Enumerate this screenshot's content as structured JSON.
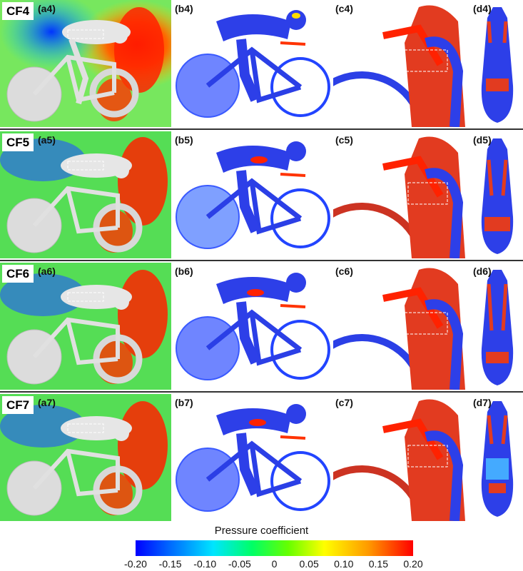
{
  "rows": [
    {
      "config": "CF4",
      "labels": [
        "(a4)",
        "(b4)",
        "(c4)",
        "(d4)"
      ]
    },
    {
      "config": "CF5",
      "labels": [
        "(a5)",
        "(b5)",
        "(c5)",
        "(d5)"
      ]
    },
    {
      "config": "CF6",
      "labels": [
        "(a6)",
        "(b6)",
        "(c6)",
        "(d6)"
      ]
    },
    {
      "config": "CF7",
      "labels": [
        "(a7)",
        "(b7)",
        "(c7)",
        "(d7)"
      ]
    }
  ],
  "legend": {
    "title": "Pressure coefficient",
    "ticks": [
      "-0.20",
      "-0.15",
      "-0.10",
      "-0.05",
      "0",
      "0.05",
      "0.10",
      "0.15",
      "0.20"
    ],
    "min": -0.2,
    "max": 0.2
  },
  "colormap": [
    "#0000ff",
    "#0066ff",
    "#00e5ff",
    "#00ff66",
    "#66ff00",
    "#ffff00",
    "#ff9900",
    "#ff0000"
  ]
}
